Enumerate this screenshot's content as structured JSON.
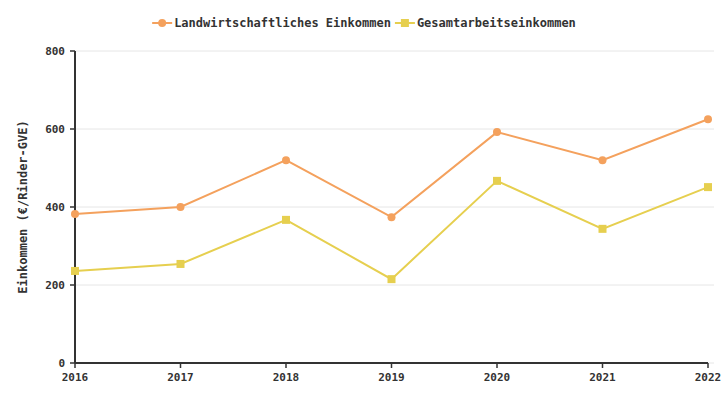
{
  "chart_data": {
    "type": "line",
    "y_label": "Einkommen (€/Rinder-GVE)",
    "x": [
      2016,
      2017,
      2018,
      2019,
      2020,
      2021,
      2022
    ],
    "xlim": [
      2016,
      2022
    ],
    "xticks": [
      2016,
      2017,
      2018,
      2019,
      2020,
      2021,
      2022
    ],
    "ylim": [
      0,
      800
    ],
    "yticks": [
      0,
      200,
      400,
      600,
      800
    ],
    "grid": true,
    "legend": "top",
    "series": [
      {
        "name": "Landwirtschaftliches Einkommen",
        "color": "#f4a15d",
        "marker": "circle",
        "values": [
          382,
          400,
          520,
          374,
          592,
          520,
          625
        ]
      },
      {
        "name": "Gesamtarbeitseinkommen",
        "color": "#e6cf4f",
        "marker": "square",
        "values": [
          236,
          254,
          367,
          215,
          467,
          344,
          451
        ]
      }
    ]
  }
}
